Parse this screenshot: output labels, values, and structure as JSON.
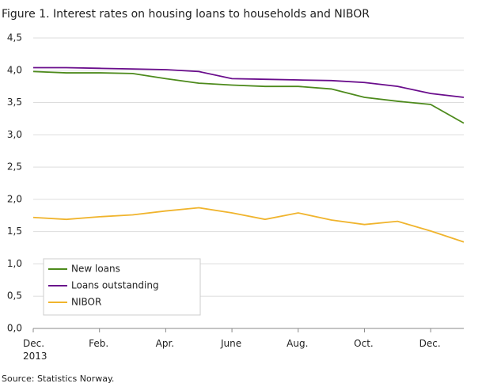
{
  "chart_data": {
    "type": "line",
    "title": "Figure 1. Interest rates on housing loans to households and NIBOR",
    "source": "Source: Statistics Norway.",
    "categories": [
      "Dec.\n2013",
      null,
      "Feb.",
      null,
      "Apr.",
      null,
      "June",
      null,
      "Aug.",
      null,
      "Oct.",
      null,
      "Dec.",
      null
    ],
    "series": [
      {
        "name": "New loans",
        "color": "#4d8a1c",
        "values": [
          3.98,
          3.96,
          3.96,
          3.95,
          3.87,
          3.8,
          3.77,
          3.75,
          3.75,
          3.71,
          3.58,
          3.52,
          3.47,
          3.18
        ]
      },
      {
        "name": "Loans outstanding",
        "color": "#6a0d8c",
        "values": [
          4.04,
          4.04,
          4.03,
          4.02,
          4.01,
          3.98,
          3.87,
          3.86,
          3.85,
          3.84,
          3.81,
          3.75,
          3.64,
          3.58
        ]
      },
      {
        "name": "NIBOR",
        "color": "#f0b42d",
        "values": [
          1.72,
          1.69,
          1.73,
          1.76,
          1.82,
          1.87,
          1.79,
          1.69,
          1.79,
          1.68,
          1.61,
          1.66,
          1.51,
          1.34
        ]
      }
    ],
    "ylim": [
      0,
      4.5
    ],
    "yticks": [
      {
        "value": 0,
        "label": "0,0"
      },
      {
        "value": 0.5,
        "label": "0,5"
      },
      {
        "value": 1,
        "label": "1,0"
      },
      {
        "value": 1.5,
        "label": "1,5"
      },
      {
        "value": 2,
        "label": "2,0"
      },
      {
        "value": 2.5,
        "label": "2,5"
      },
      {
        "value": 3,
        "label": "3,0"
      },
      {
        "value": 3.5,
        "label": "3,5"
      },
      {
        "value": 4,
        "label": "4,0"
      },
      {
        "value": 4.5,
        "label": "4,5"
      }
    ],
    "grid": true,
    "legend": "lower left"
  }
}
